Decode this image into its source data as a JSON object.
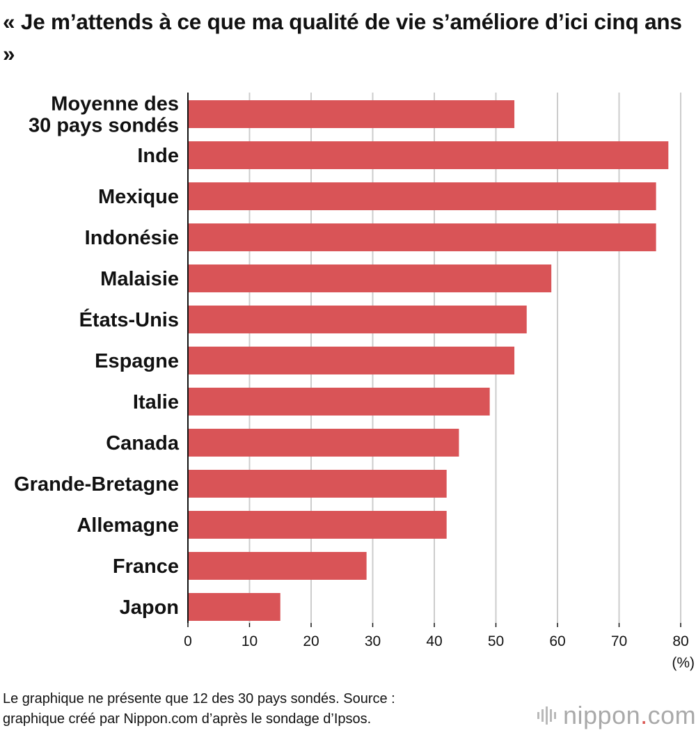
{
  "title": "« Je m’attends à ce que ma qualité de vie s’améliore d’ici cinq ans »",
  "footnote": {
    "line1": "Le graphique ne présente que 12 des 30 pays sondés. Source :",
    "line2": "graphique créé par Nippon.com d’après le sondage d’Ipsos."
  },
  "logo": {
    "name": "nippon",
    "dot": ".",
    "suffix": "com"
  },
  "colors": {
    "bar": "#d95457",
    "grid": "#cccccc",
    "axis": "#111111"
  },
  "chart_data": {
    "type": "bar",
    "orientation": "horizontal",
    "categories": [
      "Moyenne des\n30 pays sondés",
      "Inde",
      "Mexique",
      "Indonésie",
      "Malaisie",
      "États-Unis",
      "Espagne",
      "Italie",
      "Canada",
      "Grande-Bretagne",
      "Allemagne",
      "France",
      "Japon"
    ],
    "values": [
      53,
      78,
      76,
      76,
      59,
      55,
      53,
      49,
      44,
      42,
      42,
      29,
      15
    ],
    "xlim": [
      0,
      80
    ],
    "xticks": [
      0,
      10,
      20,
      30,
      40,
      50,
      60,
      70,
      80
    ],
    "unit": "(%)",
    "grid": true
  }
}
